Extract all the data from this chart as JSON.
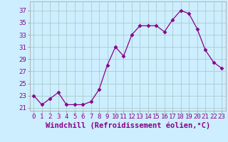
{
  "x": [
    0,
    1,
    2,
    3,
    4,
    5,
    6,
    7,
    8,
    9,
    10,
    11,
    12,
    13,
    14,
    15,
    16,
    17,
    18,
    19,
    20,
    21,
    22,
    23
  ],
  "y": [
    23.0,
    21.5,
    22.5,
    23.5,
    21.5,
    21.5,
    21.5,
    22.0,
    24.0,
    28.0,
    31.0,
    29.5,
    33.0,
    34.5,
    34.5,
    34.5,
    33.5,
    35.5,
    37.0,
    36.5,
    34.0,
    30.5,
    28.5,
    27.5
  ],
  "line_color": "#880088",
  "marker": "D",
  "marker_size": 2.5,
  "bg_color": "#cceeff",
  "grid_color": "#aacccc",
  "xlabel": "Windchill (Refroidissement éolien,°C)",
  "ylabel_ticks": [
    21,
    23,
    25,
    27,
    29,
    31,
    33,
    35,
    37
  ],
  "xlim": [
    -0.5,
    23.5
  ],
  "ylim": [
    20.5,
    38.5
  ],
  "tick_fontsize": 6.5,
  "xlabel_fontsize": 7.5,
  "xlabel_color": "#880088"
}
